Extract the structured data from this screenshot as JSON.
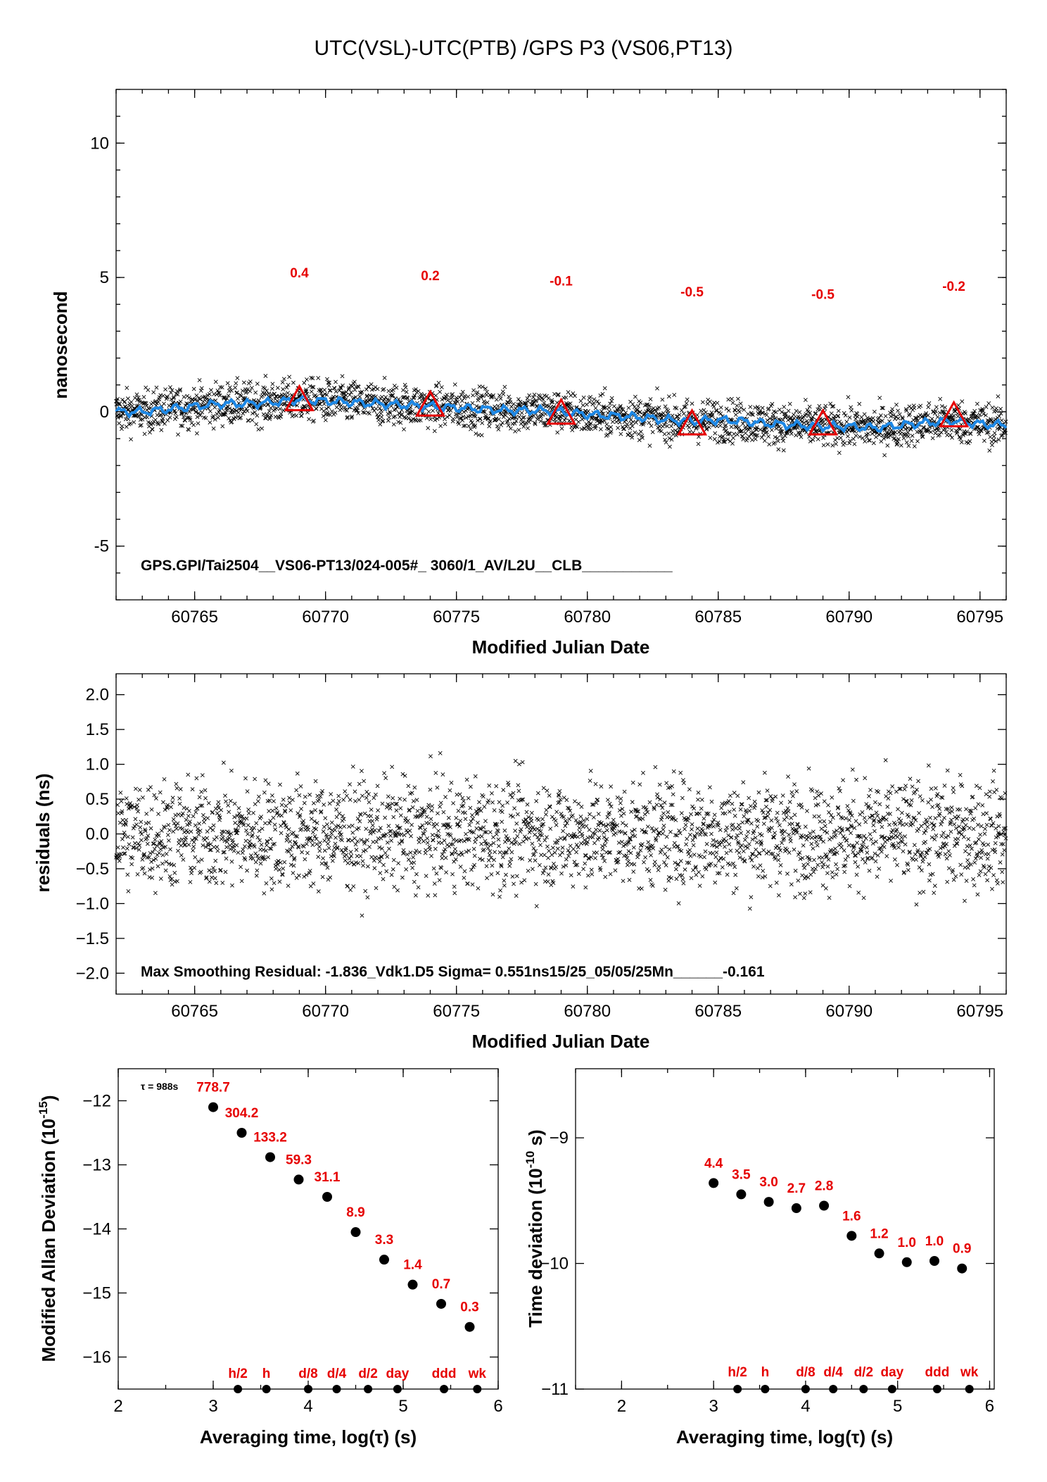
{
  "page": {
    "title": "UTC(VSL)-UTC(PTB)  /GPS  P3  (VS06,PT13)"
  },
  "chart_data": [
    {
      "id": "main",
      "type": "scatter",
      "xlabel": "Modified Julian Date",
      "ylabel": "nanosecond",
      "xlim": [
        60762,
        60796
      ],
      "ylim": [
        -7,
        12
      ],
      "xticks": [
        60765,
        60770,
        60775,
        60780,
        60785,
        60790,
        60795
      ],
      "yticks": [
        -5,
        0,
        5,
        10
      ],
      "scatter_description": "dense black x markers, about 3000 points, centered near the smoothed curve with spread about +/-1 ns",
      "smoothed_curve": {
        "color": "#1e88e5",
        "x": [
          60762,
          60763,
          60764,
          60765,
          60766,
          60767,
          60768,
          60769,
          60770,
          60771,
          60772,
          60773,
          60774,
          60775,
          60776,
          60777,
          60778,
          60779,
          60780,
          60781,
          60782,
          60783,
          60784,
          60785,
          60786,
          60787,
          60788,
          60789,
          60790,
          60791,
          60792,
          60793,
          60794,
          60795,
          60796
        ],
        "y": [
          0.0,
          0.0,
          0.1,
          0.2,
          0.3,
          0.3,
          0.35,
          0.45,
          0.4,
          0.35,
          0.3,
          0.25,
          0.2,
          0.15,
          0.1,
          0.05,
          0.05,
          0.0,
          -0.1,
          -0.15,
          -0.2,
          -0.3,
          -0.35,
          -0.3,
          -0.35,
          -0.45,
          -0.5,
          -0.55,
          -0.55,
          -0.6,
          -0.5,
          -0.4,
          -0.35,
          -0.45,
          -0.5
        ]
      },
      "triangles": {
        "color": "#e60000",
        "x": [
          60769,
          60774,
          60779,
          60784,
          60789,
          60794
        ],
        "y": [
          0.4,
          0.2,
          -0.1,
          -0.5,
          -0.5,
          -0.2
        ],
        "labels": [
          "0.4",
          "0.2",
          "-0.1",
          "-0.5",
          "-0.5",
          "-0.2"
        ],
        "label_y": [
          5.0,
          4.9,
          4.7,
          4.3,
          4.2,
          4.5
        ]
      },
      "annotation": "GPS.GPI/Tai2504__VS06-PT13/024-005#_  3060/1_AV/L2U__CLB___________"
    },
    {
      "id": "residuals",
      "type": "scatter",
      "xlabel": "Modified Julian Date",
      "ylabel": "residuals (ns)",
      "xlim": [
        60762,
        60796
      ],
      "ylim": [
        -2.3,
        2.3
      ],
      "xticks": [
        60765,
        60770,
        60775,
        60780,
        60785,
        60790,
        60795
      ],
      "yticks": [
        -2.0,
        -1.5,
        -1.0,
        -0.5,
        0.0,
        0.5,
        1.0,
        1.5,
        2.0
      ],
      "ytick_labels": [
        "−2.0",
        "−1.5",
        "−1.0",
        "−0.5",
        "0.0",
        "0.5",
        "1.0",
        "1.5",
        "2.0"
      ],
      "scatter_description": "about 3000 residual points, sigma 0.551 ns, max 1.836 ns",
      "annotation": "Max Smoothing Residual: -1.836_Vdk1.D5  Sigma= 0.551ns15/25_05/05/25Mn______-0.161"
    },
    {
      "id": "mdev",
      "type": "scatter",
      "xlabel": "Averaging time, log(τ) (s)",
      "ylabel": "Modified Allan Deviation (10",
      "ylabel_exp": "-15",
      "ylabel_end": ")",
      "xlim": [
        2,
        6
      ],
      "ylim": [
        -16.5,
        -11.5
      ],
      "xticks": [
        2,
        3,
        4,
        5,
        6
      ],
      "yticks": [
        -16,
        -15,
        -14,
        -13,
        -12
      ],
      "ytick_labels": [
        "−16",
        "−15",
        "−14",
        "−13",
        "−12"
      ],
      "tau_label": "τ = 988s",
      "x": [
        3.0,
        3.3,
        3.6,
        3.9,
        4.2,
        4.5,
        4.8,
        5.1,
        5.4,
        5.7
      ],
      "y": [
        -12.1,
        -12.5,
        -12.88,
        -13.23,
        -13.5,
        -14.05,
        -14.48,
        -14.87,
        -15.17,
        -15.53
      ],
      "labels": [
        "778.7",
        "304.2",
        "133.2",
        "59.3",
        "31.1",
        "8.9",
        "3.3",
        "1.4",
        "0.7",
        "0.3"
      ],
      "markers": {
        "x": [
          3.26,
          3.56,
          4.0,
          4.3,
          4.63,
          4.94,
          5.43,
          5.78
        ],
        "labels": [
          "h/2",
          "h",
          "d/8",
          "d/4",
          "d/2",
          "day",
          "ddd",
          "wk"
        ]
      }
    },
    {
      "id": "tdev",
      "type": "scatter",
      "xlabel": "Averaging time, log(τ) (s)",
      "ylabel": "Time deviation (10",
      "ylabel_exp": "-10",
      "ylabel_end": " s)",
      "xlim": [
        1.5,
        6.05
      ],
      "ylim": [
        -11.0,
        -8.45
      ],
      "xticks": [
        2,
        3,
        4,
        5,
        6
      ],
      "yticks": [
        -11,
        -10,
        -9
      ],
      "ytick_labels": [
        "−11",
        "−10",
        "−9"
      ],
      "x": [
        3.0,
        3.3,
        3.6,
        3.9,
        4.2,
        4.5,
        4.8,
        5.1,
        5.4,
        5.7
      ],
      "y": [
        -9.36,
        -9.45,
        -9.51,
        -9.56,
        -9.54,
        -9.78,
        -9.92,
        -9.99,
        -9.98,
        -10.04
      ],
      "labels": [
        "4.4",
        "3.5",
        "3.0",
        "2.7",
        "2.8",
        "1.6",
        "1.2",
        "1.0",
        "1.0",
        "0.9"
      ],
      "markers": {
        "x": [
          3.26,
          3.56,
          4.0,
          4.3,
          4.63,
          4.94,
          5.43,
          5.78
        ],
        "labels": [
          "h/2",
          "h",
          "d/8",
          "d/4",
          "d/2",
          "day",
          "ddd",
          "wk"
        ]
      }
    }
  ]
}
